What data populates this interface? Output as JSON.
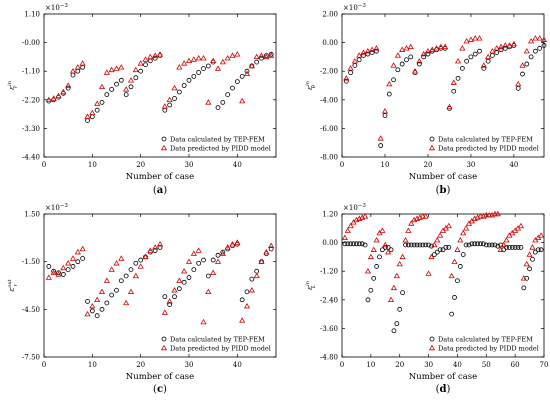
{
  "chart_data": [
    {
      "type": "scatter",
      "caption_open": "(",
      "caption_letter": "a",
      "caption_close": ")",
      "xlabel": "Number of case",
      "ylabel_base": "ε",
      "ylabel_sup": "in",
      "ylabel_sub": "r",
      "multiplier_base": "×10",
      "multiplier_exp": "−3",
      "xlim": [
        0,
        48
      ],
      "ylim": [
        -4.4,
        1.1
      ],
      "xticks": [
        0,
        10,
        20,
        30,
        40
      ],
      "yticks": [
        1.1,
        0.0,
        -1.1,
        -2.2,
        -3.3,
        -4.4
      ],
      "ytick_labels": [
        "1.10",
        "-0.00",
        "-1.10",
        "-2.20",
        "-3.30",
        "-4.40"
      ],
      "legend": {
        "position": "bottom-right"
      },
      "series": [
        {
          "name": "Data calculated by TEP-FEM",
          "marker": "circle",
          "color": "#000000",
          "x": [
            1,
            2,
            3,
            4,
            5,
            6,
            7,
            8,
            9,
            10,
            11,
            12,
            13,
            14,
            15,
            16,
            17,
            18,
            19,
            20,
            21,
            22,
            23,
            24,
            25,
            26,
            27,
            28,
            29,
            30,
            31,
            32,
            33,
            34,
            35,
            36,
            37,
            38,
            39,
            40,
            41,
            42,
            43,
            44,
            45,
            46,
            47
          ],
          "y": [
            -2.25,
            -2.2,
            -2.1,
            -1.95,
            -1.75,
            -1.25,
            -1.1,
            -0.95,
            -3.0,
            -2.85,
            -2.6,
            -2.3,
            -2.0,
            -1.8,
            -1.6,
            -1.45,
            -2.0,
            -1.7,
            -1.35,
            -1.1,
            -0.85,
            -0.7,
            -0.6,
            -0.5,
            -2.6,
            -2.4,
            -2.15,
            -1.9,
            -1.65,
            -1.45,
            -1.3,
            -1.15,
            -1.0,
            -0.9,
            -0.75,
            -2.5,
            -2.3,
            -2.0,
            -1.75,
            -1.5,
            -1.3,
            -1.1,
            -0.9,
            -0.75,
            -0.6,
            -0.5,
            -0.45
          ]
        },
        {
          "name": "Data predicted by PIDD model",
          "marker": "triangle",
          "color": "#d40000",
          "x": [
            1,
            2,
            3,
            4,
            5,
            6,
            7,
            8,
            9,
            10,
            11,
            12,
            13,
            14,
            15,
            16,
            17,
            18,
            19,
            20,
            21,
            22,
            23,
            24,
            25,
            26,
            27,
            28,
            29,
            30,
            31,
            32,
            33,
            34,
            35,
            36,
            37,
            38,
            39,
            40,
            41,
            42,
            43,
            44,
            45,
            46,
            47
          ],
          "y": [
            -2.2,
            -2.15,
            -2.05,
            -1.9,
            -1.65,
            -1.1,
            -0.95,
            -0.8,
            -2.85,
            -2.7,
            -2.35,
            -1.7,
            -1.15,
            -1.05,
            -1.0,
            -0.95,
            -1.8,
            -1.45,
            -1.05,
            -0.8,
            -0.65,
            -0.55,
            -0.5,
            -0.45,
            -2.45,
            -2.2,
            -1.75,
            -0.95,
            -0.8,
            -0.7,
            -0.65,
            -0.6,
            -0.6,
            -2.3,
            -0.7,
            -1.0,
            -0.75,
            -0.6,
            -0.5,
            -0.45,
            -2.25,
            -1.2,
            -0.9,
            -0.55,
            -0.5,
            -0.55,
            -0.5
          ]
        }
      ]
    },
    {
      "type": "scatter",
      "caption_open": "(",
      "caption_letter": "b",
      "caption_close": ")",
      "xlabel": "Number of case",
      "ylabel_base": "ε",
      "ylabel_sup": "in",
      "ylabel_sub": "θ",
      "multiplier_base": "×10",
      "multiplier_exp": "−3",
      "xlim": [
        0,
        47
      ],
      "ylim": [
        -8.0,
        2.0
      ],
      "xticks": [
        0,
        10,
        20,
        30,
        40
      ],
      "yticks": [
        2,
        0,
        -2,
        -4,
        -6,
        -8
      ],
      "ytick_labels": [
        "2.00",
        "0.00",
        "-2.00",
        "-4.00",
        "-6.00",
        "-8.00"
      ],
      "legend": {
        "position": "bottom-right"
      },
      "series": [
        {
          "name": "Data calculated by TEP-FEM",
          "marker": "circle",
          "color": "#000000",
          "x": [
            1,
            2,
            3,
            4,
            5,
            6,
            7,
            8,
            9,
            10,
            11,
            12,
            13,
            14,
            15,
            16,
            17,
            18,
            19,
            20,
            21,
            22,
            23,
            24,
            25,
            26,
            27,
            28,
            29,
            30,
            31,
            32,
            33,
            34,
            35,
            36,
            37,
            38,
            39,
            40,
            41,
            42,
            43,
            44,
            45,
            46,
            47
          ],
          "y": [
            -2.7,
            -2.1,
            -1.6,
            -1.2,
            -0.9,
            -0.8,
            -0.7,
            -0.6,
            -7.2,
            -5.1,
            -3.6,
            -2.6,
            -1.9,
            -1.5,
            -1.2,
            -1.0,
            -2.1,
            -1.5,
            -1.0,
            -0.8,
            -0.6,
            -0.5,
            -0.4,
            -0.4,
            -4.6,
            -3.4,
            -2.5,
            -1.8,
            -1.3,
            -1.0,
            -0.8,
            -0.6,
            -1.8,
            -1.3,
            -0.9,
            -0.7,
            -0.5,
            -0.4,
            -0.3,
            -0.2,
            -3.2,
            -2.2,
            -1.5,
            -1.0,
            -0.6,
            -0.4,
            -0.2
          ]
        },
        {
          "name": "Data predicted by PIDD model",
          "marker": "triangle",
          "color": "#d40000",
          "x": [
            1,
            2,
            3,
            4,
            5,
            6,
            7,
            8,
            9,
            10,
            11,
            12,
            13,
            14,
            15,
            16,
            17,
            18,
            19,
            20,
            21,
            22,
            23,
            24,
            25,
            26,
            27,
            28,
            29,
            30,
            31,
            32,
            33,
            34,
            35,
            36,
            37,
            38,
            39,
            40,
            41,
            42,
            43,
            44,
            45,
            46,
            47
          ],
          "y": [
            -2.5,
            -1.8,
            -1.3,
            -0.9,
            -0.7,
            -0.6,
            -0.5,
            -0.4,
            -6.7,
            -4.8,
            -2.9,
            -1.6,
            -0.9,
            -0.5,
            -0.4,
            -0.3,
            -2.0,
            -1.3,
            -0.8,
            -0.6,
            -0.5,
            -0.4,
            -0.3,
            -0.3,
            -4.5,
            -2.8,
            -1.3,
            -0.4,
            0.1,
            0.2,
            0.3,
            0.3,
            -1.6,
            -1.0,
            -0.6,
            -0.4,
            -0.3,
            -0.2,
            -0.2,
            -0.1,
            -2.9,
            -1.6,
            -0.6,
            0.1,
            0.3,
            0.3,
            0.2
          ]
        }
      ]
    },
    {
      "type": "scatter",
      "caption_open": "(",
      "caption_letter": "c",
      "caption_close": ")",
      "xlabel": "Number of case",
      "ylabel_base": "ε",
      "ylabel_sup": "out",
      "ylabel_sub": "r",
      "multiplier_base": "×10",
      "multiplier_exp": "−3",
      "xlim": [
        0,
        48
      ],
      "ylim": [
        -7.5,
        1.5
      ],
      "xticks": [
        0,
        10,
        20,
        30,
        40
      ],
      "yticks": [
        1.5,
        -1.5,
        -4.5,
        -7.5
      ],
      "ytick_labels": [
        "1.50",
        "-1.50",
        "-4.50",
        "-7.50"
      ],
      "legend": {
        "position": "bottom-right"
      },
      "series": [
        {
          "name": "Data calculated by TEP-FEM",
          "marker": "circle",
          "color": "#000000",
          "x": [
            1,
            2,
            3,
            4,
            5,
            6,
            7,
            8,
            9,
            10,
            11,
            12,
            13,
            14,
            15,
            16,
            17,
            18,
            19,
            20,
            21,
            22,
            23,
            24,
            25,
            26,
            27,
            28,
            29,
            30,
            31,
            32,
            33,
            34,
            35,
            36,
            37,
            38,
            39,
            40,
            41,
            42,
            43,
            44,
            45,
            46,
            47
          ],
          "y": [
            -1.8,
            -2.1,
            -2.2,
            -2.3,
            -2.0,
            -1.8,
            -1.5,
            -1.3,
            -4.0,
            -4.6,
            -4.9,
            -4.5,
            -4.1,
            -3.6,
            -3.3,
            -2.7,
            -2.4,
            -2.0,
            -1.6,
            -1.4,
            -1.2,
            -0.9,
            -0.8,
            -0.6,
            -3.7,
            -4.2,
            -3.7,
            -3.2,
            -2.8,
            -2.5,
            -2.0,
            -1.6,
            -1.4,
            -2.4,
            -1.4,
            -1.1,
            -0.9,
            -0.7,
            -0.5,
            -0.4,
            -3.9,
            -3.4,
            -2.6,
            -2.1,
            -1.5,
            -1.0,
            -0.7
          ]
        },
        {
          "name": "Data predicted by PIDD model",
          "marker": "triangle",
          "color": "#d40000",
          "x": [
            1,
            2,
            3,
            4,
            5,
            6,
            7,
            8,
            9,
            10,
            11,
            12,
            13,
            14,
            15,
            16,
            17,
            18,
            19,
            20,
            21,
            22,
            23,
            24,
            25,
            26,
            27,
            28,
            29,
            30,
            31,
            32,
            33,
            34,
            35,
            36,
            37,
            38,
            39,
            40,
            41,
            42,
            43,
            44,
            45,
            46,
            47
          ],
          "y": [
            -2.5,
            -2.2,
            -2.3,
            -1.9,
            -1.6,
            -1.3,
            -0.9,
            -0.7,
            -4.8,
            -4.3,
            -3.9,
            -3.4,
            -2.7,
            -2.0,
            -1.6,
            -1.3,
            -4.1,
            -3.4,
            -2.4,
            -1.8,
            -1.2,
            -0.8,
            -0.6,
            -0.4,
            -4.7,
            -4.0,
            -3.3,
            -2.7,
            -2.1,
            -1.5,
            -1.0,
            -0.8,
            -5.3,
            -3.4,
            -2.2,
            -1.5,
            -1.0,
            -0.6,
            -0.4,
            -0.3,
            -5.2,
            -4.3,
            -3.3,
            -2.4,
            -1.5,
            -0.9,
            -0.5
          ]
        }
      ]
    },
    {
      "type": "scatter",
      "caption_open": "(",
      "caption_letter": "d",
      "caption_close": ")",
      "xlabel": "Number of case",
      "ylabel_base": "ε",
      "ylabel_sup": "in",
      "ylabel_sub": "L",
      "multiplier_base": "×10",
      "multiplier_exp": "−3",
      "xlim": [
        0,
        70
      ],
      "ylim": [
        -4.8,
        1.2
      ],
      "xticks": [
        0,
        10,
        20,
        30,
        40,
        50,
        60,
        70
      ],
      "yticks": [
        1.2,
        0.0,
        -1.2,
        -2.4,
        -3.6,
        -4.8
      ],
      "ytick_labels": [
        "1.20",
        "0.00",
        "-1.20",
        "-2.40",
        "-3.60",
        "-4.80"
      ],
      "legend": {
        "position": "bottom-right"
      },
      "series": [
        {
          "name": "Data calculated by TEP-FEM",
          "marker": "circle",
          "color": "#000000",
          "x": [
            1,
            2,
            3,
            4,
            5,
            6,
            7,
            8,
            9,
            10,
            11,
            12,
            13,
            14,
            15,
            16,
            17,
            18,
            19,
            20,
            21,
            22,
            23,
            24,
            25,
            26,
            27,
            28,
            29,
            30,
            31,
            32,
            33,
            34,
            35,
            36,
            37,
            38,
            39,
            40,
            41,
            42,
            43,
            44,
            45,
            46,
            47,
            48,
            49,
            50,
            51,
            52,
            53,
            54,
            55,
            56,
            57,
            58,
            59,
            60,
            61,
            62,
            63,
            64,
            65,
            66,
            67,
            68,
            69
          ],
          "y": [
            -0.05,
            -0.05,
            -0.05,
            -0.05,
            -0.05,
            -0.05,
            -0.05,
            -0.1,
            -2.4,
            -2.0,
            -1.5,
            -1.0,
            -0.6,
            -0.3,
            -0.2,
            -0.2,
            -0.3,
            -3.7,
            -3.4,
            -2.8,
            -2.1,
            -0.1,
            -0.1,
            -0.1,
            -0.1,
            -0.1,
            -0.1,
            -0.1,
            -0.1,
            -0.1,
            -0.15,
            -0.5,
            -0.4,
            -0.3,
            -0.3,
            -0.2,
            -0.2,
            -3.0,
            -2.3,
            -1.6,
            -1.0,
            -0.5,
            -0.1,
            -0.1,
            -0.05,
            -0.05,
            -0.05,
            -0.05,
            -0.05,
            -0.1,
            -0.1,
            -0.1,
            -0.1,
            -0.15,
            -0.1,
            -0.3,
            -0.2,
            -0.2,
            -0.2,
            -0.2,
            -0.2,
            -0.2,
            -1.9,
            -1.5,
            -1.1,
            -0.7,
            -0.4,
            -0.3,
            -0.3
          ]
        },
        {
          "name": "Data predicted by PIDD model",
          "marker": "triangle",
          "color": "#d40000",
          "x": [
            1,
            2,
            3,
            4,
            5,
            6,
            7,
            8,
            9,
            10,
            11,
            12,
            13,
            14,
            15,
            16,
            17,
            18,
            19,
            20,
            21,
            22,
            23,
            24,
            25,
            26,
            27,
            28,
            29,
            30,
            31,
            32,
            33,
            34,
            35,
            36,
            37,
            38,
            39,
            40,
            41,
            42,
            43,
            44,
            45,
            46,
            47,
            48,
            49,
            50,
            51,
            52,
            53,
            54,
            55,
            56,
            57,
            58,
            59,
            60,
            61,
            62,
            63,
            64,
            65,
            66,
            67,
            68,
            69
          ],
          "y": [
            0.2,
            0.5,
            0.7,
            0.85,
            0.95,
            1.0,
            1.05,
            1.1,
            -1.2,
            -0.6,
            -0.3,
            0.1,
            0.4,
            0.5,
            -0.1,
            -0.4,
            -2.4,
            -1.9,
            -1.4,
            -0.9,
            -0.6,
            0.1,
            0.5,
            0.8,
            0.95,
            1.0,
            1.05,
            1.1,
            1.1,
            -1.3,
            -0.6,
            -0.1,
            0.1,
            0.3,
            0.5,
            0.6,
            0.7,
            -1.4,
            -0.8,
            -0.3,
            0.1,
            0.4,
            0.6,
            0.8,
            0.9,
            1.0,
            1.05,
            1.1,
            1.1,
            1.15,
            1.15,
            1.15,
            1.2,
            1.2,
            -0.3,
            -0.1,
            0.1,
            0.3,
            0.4,
            0.5,
            0.6,
            0.7,
            -1.5,
            -0.9,
            -0.5,
            -0.2,
            0.1,
            0.2,
            0.3
          ]
        }
      ]
    }
  ]
}
